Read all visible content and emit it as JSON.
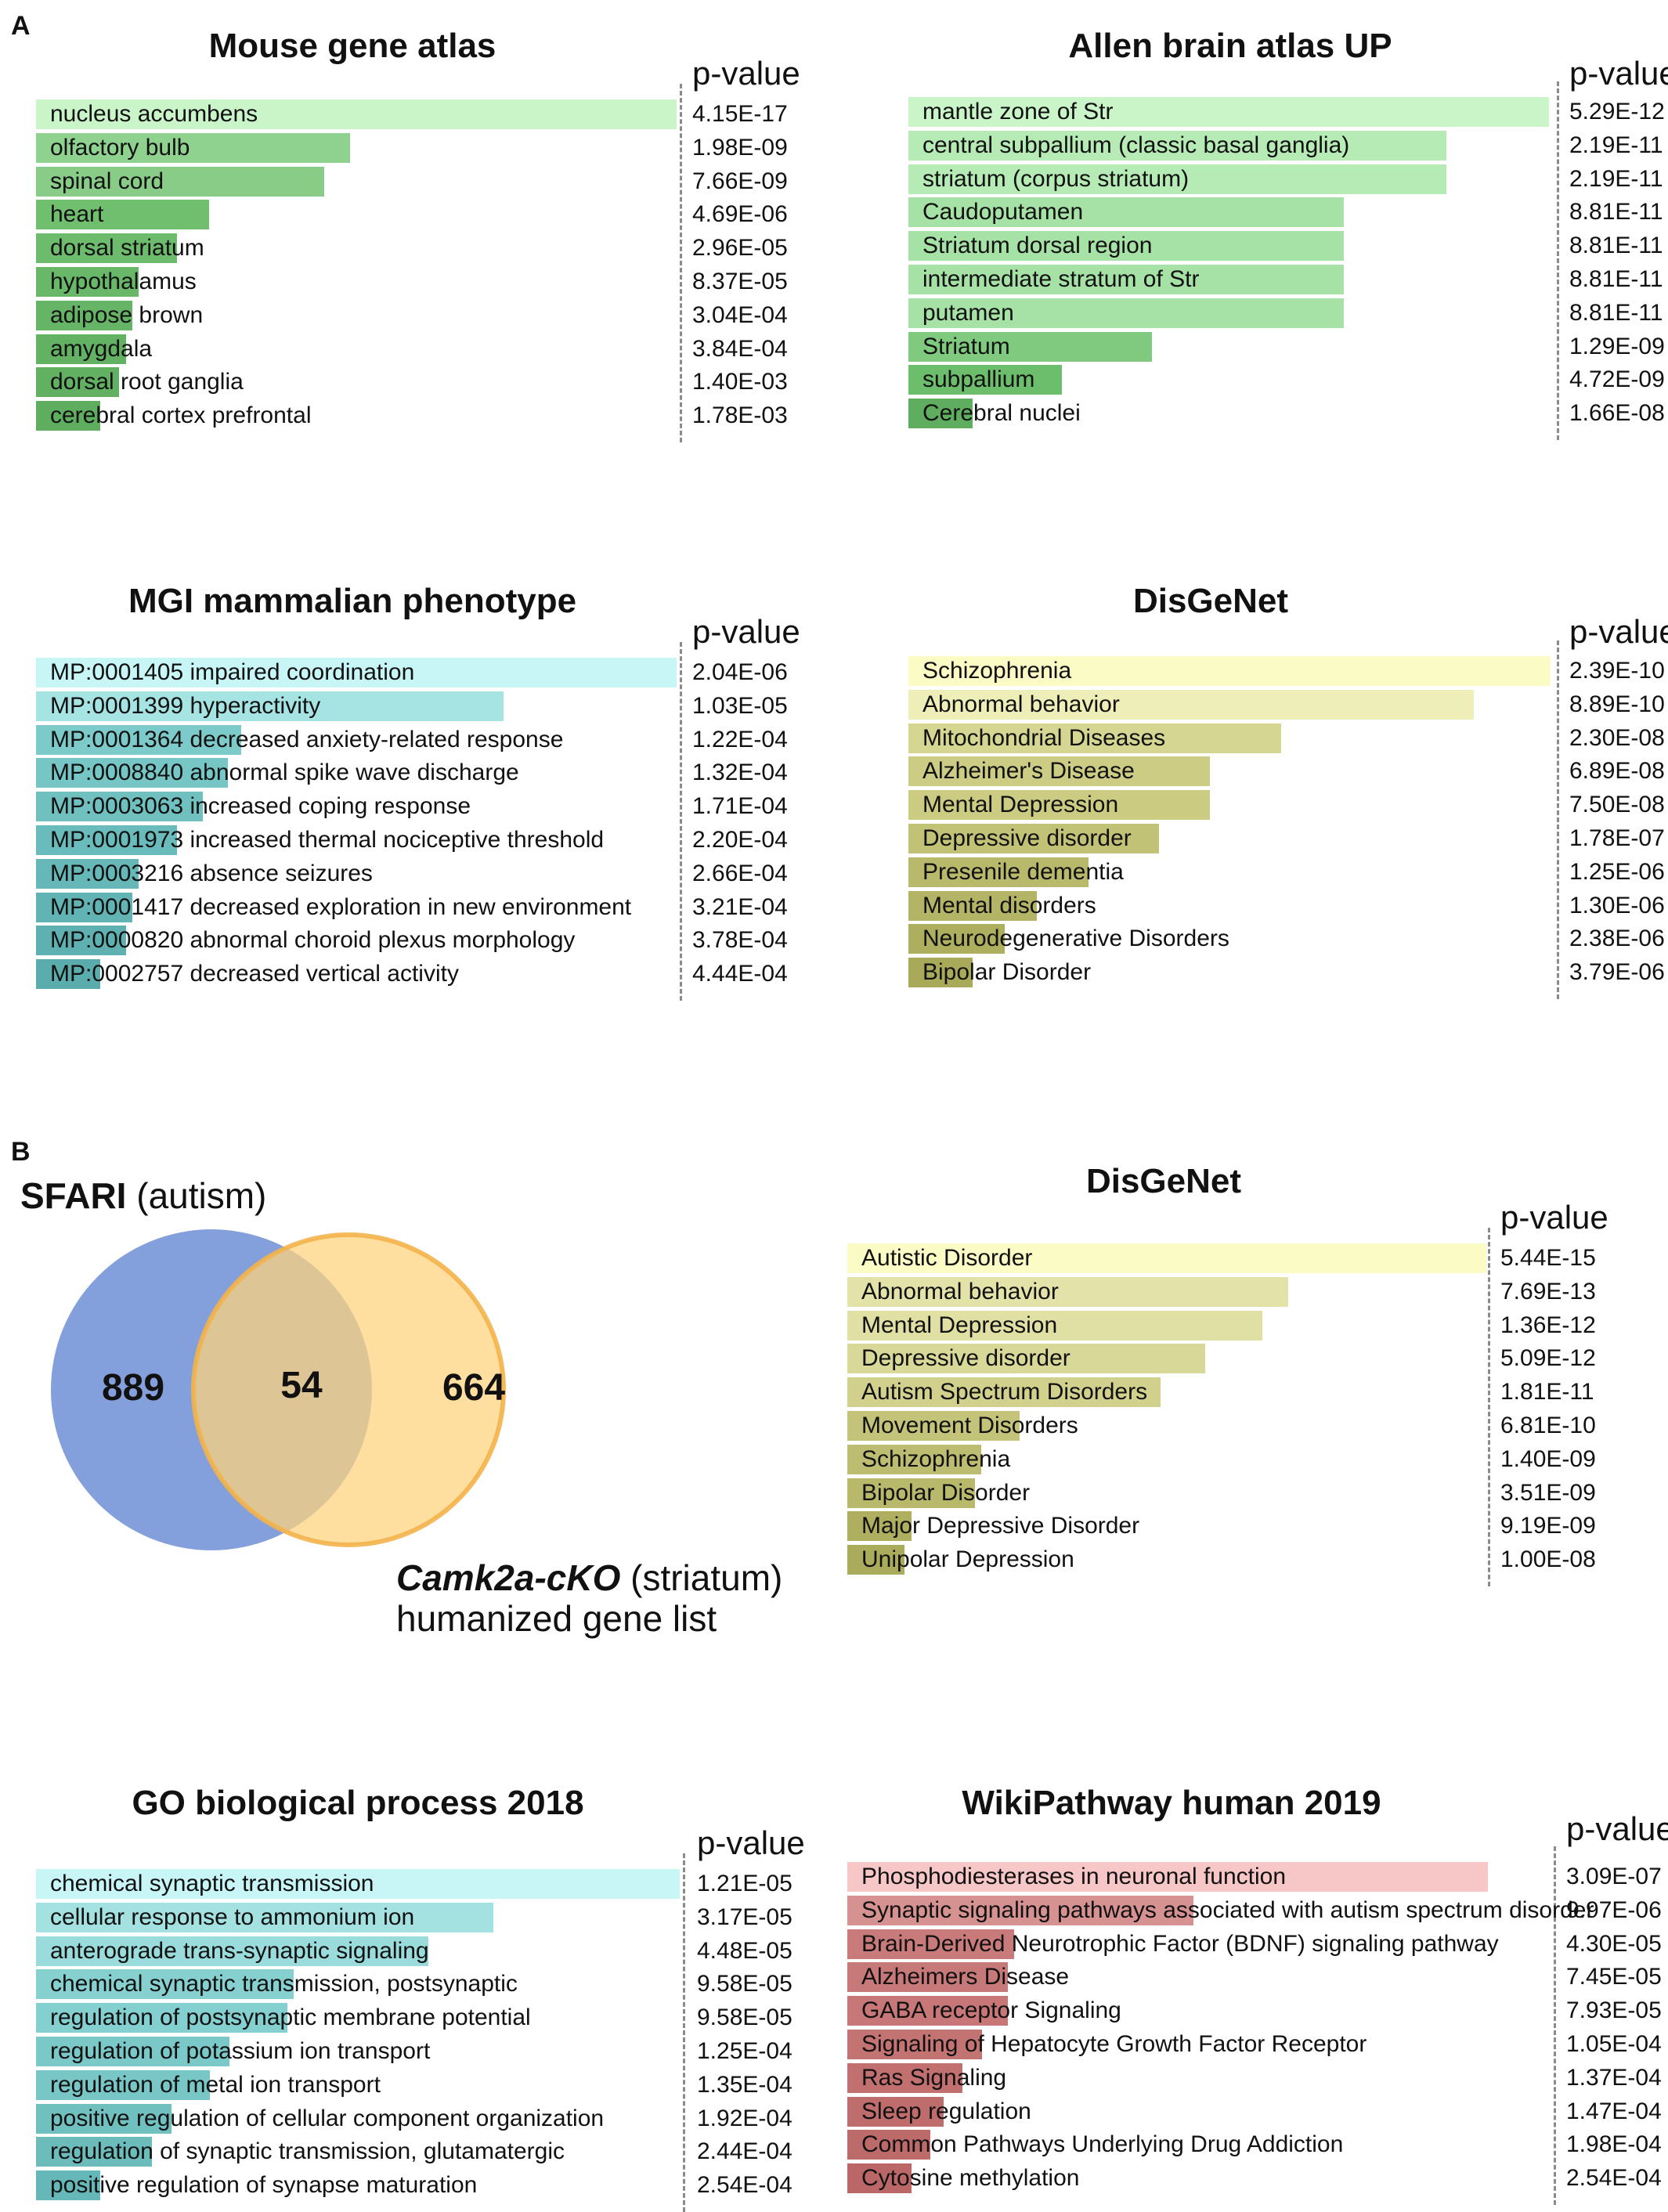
{
  "panels": {
    "a": "A",
    "b": "B"
  },
  "pvalue_label": "p-value",
  "chart_data": [
    {
      "type": "bar",
      "title": "Mouse gene atlas",
      "metric": "enrichment rank (relative bar length)",
      "series": [
        {
          "name": "relative score",
          "values": [
            1.0,
            0.49,
            0.45,
            0.27,
            0.22,
            0.16,
            0.15,
            0.14,
            0.13,
            0.1
          ]
        }
      ],
      "categories": [
        "nucleus accumbens",
        "olfactory bulb",
        "spinal cord",
        "heart",
        "dorsal striatum",
        "hypothalamus",
        "adipose brown",
        "amygdala",
        "dorsal root ganglia",
        "cerebral cortex prefrontal"
      ],
      "pvalues": [
        "4.15E-17",
        "1.98E-09",
        "7.66E-09",
        "4.69E-06",
        "2.96E-05",
        "8.37E-05",
        "3.04E-04",
        "3.84E-04",
        "1.40E-03",
        "1.78E-03"
      ],
      "colors": [
        "#c9f5c9",
        "#8fd18f",
        "#88cc88",
        "#6fbf6f",
        "#6dbc6d",
        "#69b869",
        "#66b566",
        "#63b263",
        "#62b062",
        "#5fae5f"
      ]
    },
    {
      "type": "bar",
      "title": "Allen brain atlas UP",
      "series": [
        {
          "name": "relative score",
          "values": [
            1.0,
            0.84,
            0.84,
            0.68,
            0.68,
            0.68,
            0.68,
            0.38,
            0.24,
            0.1
          ]
        }
      ],
      "categories": [
        "mantle zone of Str",
        "central subpallium (classic basal ganglia)",
        "striatum (corpus striatum)",
        "Caudoputamen",
        "Striatum dorsal region",
        "intermediate stratum of Str",
        "putamen",
        "Striatum",
        "subpallium",
        "Cerebral nuclei"
      ],
      "pvalues": [
        "5.29E-12",
        "2.19E-11",
        "2.19E-11",
        "8.81E-11",
        "8.81E-11",
        "8.81E-11",
        "8.81E-11",
        "1.29E-09",
        "4.72E-09",
        "1.66E-08"
      ],
      "colors": [
        "#c9f5c9",
        "#b6ebb6",
        "#b6ebb6",
        "#a6e1a6",
        "#a6e1a6",
        "#a6e1a6",
        "#a6e1a6",
        "#7fca7f",
        "#6cbd6c",
        "#5fae5f"
      ]
    },
    {
      "type": "bar",
      "title": "MGI mammalian phenotype",
      "series": [
        {
          "name": "relative score",
          "values": [
            1.0,
            0.73,
            0.32,
            0.3,
            0.26,
            0.22,
            0.16,
            0.15,
            0.14,
            0.1
          ]
        }
      ],
      "categories": [
        "MP:0001405 impaired coordination",
        "MP:0001399 hyperactivity",
        "MP:0001364 decreased anxiety-related response",
        "MP:0008840 abnormal spike wave discharge",
        "MP:0003063 increased coping response",
        "MP:0001973 increased thermal nociceptive threshold",
        "MP:0003216 absence seizures",
        "MP:0001417 decreased exploration in new environment",
        "MP:0000820 abnormal choroid plexus morphology",
        "MP:0002757 decreased vertical activity"
      ],
      "pvalues": [
        "2.04E-06",
        "1.03E-05",
        "1.22E-04",
        "1.32E-04",
        "1.71E-04",
        "2.20E-04",
        "2.66E-04",
        "3.21E-04",
        "3.78E-04",
        "4.44E-04"
      ],
      "colors": [
        "#c8f6f6",
        "#a6e3e3",
        "#7ccaca",
        "#77c6c6",
        "#70c0c0",
        "#6abbbb",
        "#66b7b7",
        "#62b3b3",
        "#5fb0b0",
        "#5bacac"
      ]
    },
    {
      "type": "bar",
      "title": "DisGeNet",
      "series": [
        {
          "name": "relative score",
          "values": [
            1.0,
            0.88,
            0.58,
            0.47,
            0.47,
            0.39,
            0.28,
            0.2,
            0.15,
            0.1
          ]
        }
      ],
      "categories": [
        "Schizophrenia",
        "Abnormal behavior",
        "Mitochondrial Diseases",
        "Alzheimer's Disease",
        "Mental Depression",
        "Depressive disorder",
        "Presenile dementia",
        "Mental disorders",
        "Neurodegenerative Disorders",
        "Bipolar Disorder"
      ],
      "pvalues": [
        "2.39E-10",
        "8.89E-10",
        "2.30E-08",
        "6.89E-08",
        "7.50E-08",
        "1.78E-07",
        "1.25E-06",
        "1.30E-06",
        "2.38E-06",
        "3.79E-06"
      ],
      "colors": [
        "#fbfbc6",
        "#eeeeb8",
        "#d6d693",
        "#cccc84",
        "#cbcb82",
        "#c2c276",
        "#b9b96b",
        "#b4b466",
        "#aeae5f",
        "#a9a95a"
      ]
    },
    {
      "type": "bar",
      "title": "DisGeNet",
      "series": [
        {
          "name": "relative score",
          "values": [
            1.0,
            0.69,
            0.65,
            0.56,
            0.49,
            0.27,
            0.21,
            0.2,
            0.1,
            0.09
          ]
        }
      ],
      "categories": [
        "Autistic Disorder",
        "Abnormal behavior",
        "Mental Depression",
        "Depressive disorder",
        "Autism Spectrum Disorders",
        "Movement Disorders",
        "Schizophrenia",
        "Bipolar Disorder",
        "Major Depressive Disorder",
        "Unipolar Depression"
      ],
      "pvalues": [
        "5.44E-15",
        "7.69E-13",
        "1.36E-12",
        "5.09E-12",
        "1.81E-11",
        "6.81E-10",
        "1.40E-09",
        "3.51E-09",
        "9.19E-09",
        "1.00E-08"
      ],
      "colors": [
        "#fbfbc6",
        "#e3e3a9",
        "#e0e0a4",
        "#d8d898",
        "#d1d18d",
        "#c3c37a",
        "#bdbd72",
        "#b9b96c",
        "#afaf60",
        "#abab5c"
      ]
    },
    {
      "type": "bar",
      "title": "GO biological process 2018",
      "series": [
        {
          "name": "relative score",
          "values": [
            1.0,
            0.71,
            0.61,
            0.4,
            0.39,
            0.3,
            0.27,
            0.21,
            0.18,
            0.1
          ]
        }
      ],
      "categories": [
        "chemical synaptic transmission",
        "cellular response to ammonium ion",
        "anterograde trans-synaptic signaling",
        "chemical synaptic transmission, postsynaptic",
        "regulation of postsynaptic membrane potential",
        "regulation of potassium ion transport",
        "regulation of metal ion transport",
        "positive regulation of cellular component organization",
        "regulation of synaptic transmission, glutamatergic",
        "positive regulation of synapse maturation"
      ],
      "pvalues": [
        "1.21E-05",
        "3.17E-05",
        "4.48E-05",
        "9.58E-05",
        "9.58E-05",
        "1.25E-04",
        "1.35E-04",
        "1.92E-04",
        "2.44E-04",
        "2.54E-04"
      ],
      "colors": [
        "#c8f6f6",
        "#a4e2e2",
        "#9adcdc",
        "#86d0d0",
        "#84cfcf",
        "#7bc8c8",
        "#78c6c6",
        "#71c0c0",
        "#6cbcbc",
        "#66b7b7"
      ]
    },
    {
      "type": "bar",
      "title": "WikiPathway human 2019",
      "series": [
        {
          "name": "relative score",
          "values": [
            1.0,
            0.54,
            0.26,
            0.25,
            0.25,
            0.21,
            0.18,
            0.15,
            0.13,
            0.1
          ]
        }
      ],
      "categories": [
        "Phosphodiesterases in neuronal function",
        "Synaptic signaling pathways associated with autism spectrum disorder",
        "Brain-Derived Neurotrophic Factor (BDNF) signaling pathway",
        "Alzheimers Disease",
        "GABA receptor Signaling",
        "Signaling of Hepatocyte Growth Factor Receptor",
        "Ras Signaling",
        "Sleep regulation",
        "Common Pathways Underlying Drug Addiction",
        "Cytosine methylation"
      ],
      "pvalues": [
        "3.09E-07",
        "9.97E-06",
        "4.30E-05",
        "7.45E-05",
        "7.93E-05",
        "1.05E-04",
        "1.37E-04",
        "1.47E-04",
        "1.98E-04",
        "2.54E-04"
      ],
      "colors": [
        "#f7c6c6",
        "#d69191",
        "#c97a7a",
        "#c77878",
        "#c77777",
        "#c47373",
        "#c16f6f",
        "#bf6c6c",
        "#bd6a6a",
        "#bb6767"
      ]
    }
  ],
  "venn": {
    "title_bold": "SFARI",
    "title_rest": " (autism)",
    "left_count": "889",
    "overlap_count": "54",
    "right_count": "664",
    "caption_bold": "Camk2a-cKO",
    "caption_rest": " (striatum)",
    "caption_line2": "humanized gene list",
    "left_color": "#6f8fd6",
    "right_color": "#ffd27a"
  }
}
